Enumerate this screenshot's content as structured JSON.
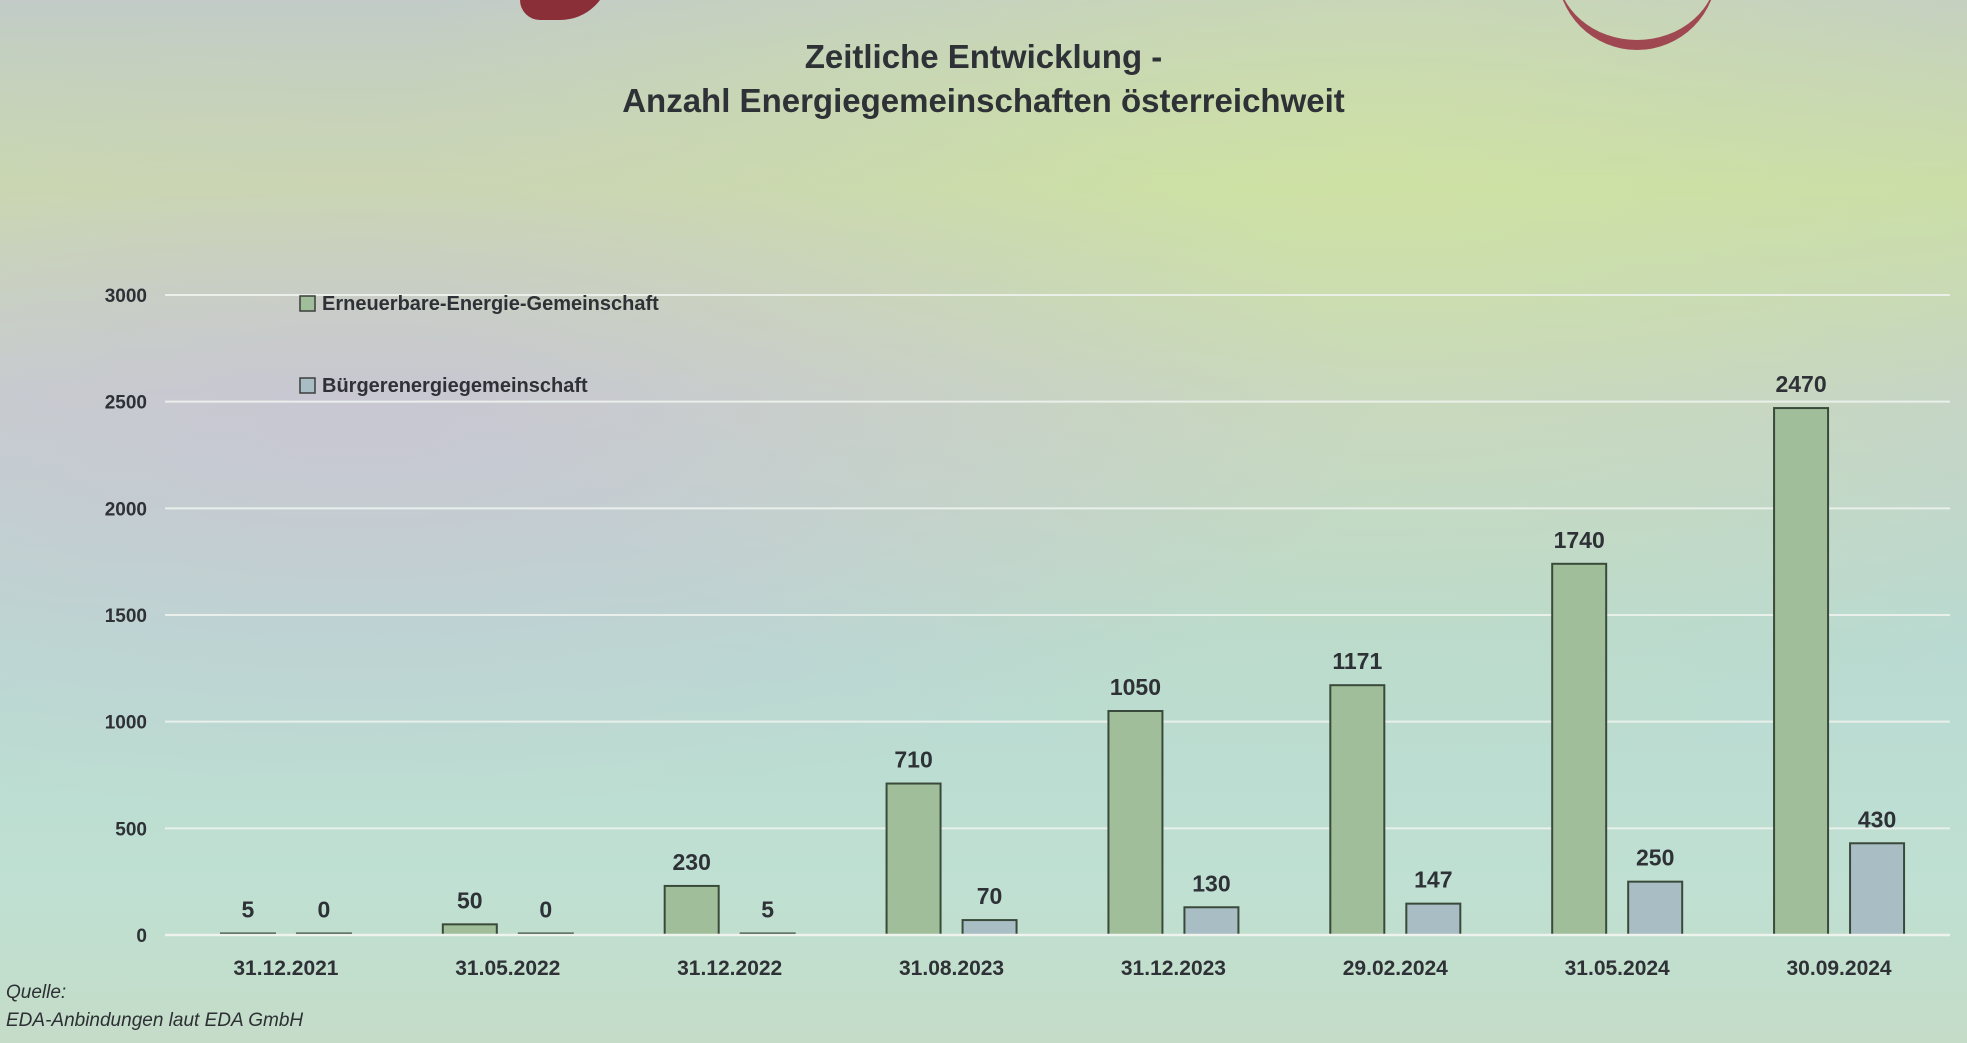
{
  "slide": {
    "title_line1": "Zeitliche Entwicklung -",
    "title_line2": "Anzahl Energiegemeinschaften österreichweit",
    "source_label": "Quelle:",
    "source_text": "EDA-Anbindungen laut EDA GmbH"
  },
  "colors": {
    "eeg": "#9fbe99",
    "beg": "#a9bdc4",
    "gridline": "#eef3ee",
    "text": "#2e3136"
  },
  "chart_data": {
    "type": "bar",
    "title": "Zeitliche Entwicklung - Anzahl Energiegemeinschaften österreichweit",
    "categories": [
      "31.12.2021",
      "31.05.2022",
      "31.12.2022",
      "31.08.2023",
      "31.12.2023",
      "29.02.2024",
      "31.05.2024",
      "30.09.2024"
    ],
    "series": [
      {
        "name": "Erneuerbare-Energie-Gemeinschaft",
        "values": [
          5,
          50,
          230,
          710,
          1050,
          1171,
          1740,
          2470
        ]
      },
      {
        "name": "Bürgerenergiegemeinschaft",
        "values": [
          0,
          0,
          5,
          70,
          130,
          147,
          250,
          430
        ]
      }
    ],
    "yticks": [
      0,
      500,
      1000,
      1500,
      2000,
      2500,
      3000
    ],
    "ylim": [
      0,
      3000
    ],
    "grid": true,
    "legend": "top-left",
    "data_labels": true
  }
}
